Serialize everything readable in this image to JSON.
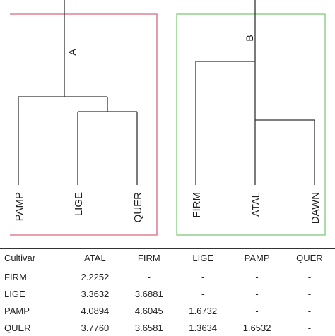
{
  "dendrogram": {
    "cluster_a": {
      "label": "A",
      "border_color": "#d9667f",
      "leaves": [
        "PAMP",
        "LIGE",
        "QUER"
      ]
    },
    "cluster_b": {
      "label": "B",
      "border_color": "#7fc97a",
      "leaves": [
        "FIRM",
        "ATAL",
        "DAWN"
      ]
    }
  },
  "table": {
    "headers": [
      "Cultivar",
      "ATAL",
      "FIRM",
      "LIGE",
      "PAMP",
      "QUER"
    ],
    "rows": [
      [
        "FIRM",
        "2.2252",
        "-",
        "-",
        "-",
        "-"
      ],
      [
        "LIGE",
        "3.3632",
        "3.6881",
        "-",
        "-",
        "-"
      ],
      [
        "PAMP",
        "4.0894",
        "4.6045",
        "1.6732",
        "-",
        "-"
      ],
      [
        "QUER",
        "3.7760",
        "3.6581",
        "1.3634",
        "1.6532",
        "-"
      ]
    ]
  }
}
